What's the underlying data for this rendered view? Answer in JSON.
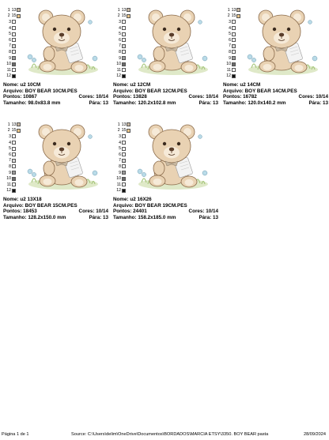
{
  "designs": [
    {
      "nome": "Nome: u2 10CM",
      "arquivo": "Arquivo: BOY BEAR 10CM.PES",
      "pontos": "Pontos: 10867",
      "cores": "Cores: 10/14",
      "tamanho": "Tamanho: 98.0x83.8 mm",
      "para": "Pára: 13"
    },
    {
      "nome": "Nome: u2 12CM",
      "arquivo": "Arquivo: BOY BEAR 12CM.PES",
      "pontos": "Pontos: 13828",
      "cores": "Cores: 10/14",
      "tamanho": "Tamanho: 120.2x102.8 mm",
      "para": "Pára: 13"
    },
    {
      "nome": "Nome: u2 14CM",
      "arquivo": "Arquivo: BOY BEAR 14CM.PES",
      "pontos": "Pontos: 16782",
      "cores": "Cores: 10/14",
      "tamanho": "Tamanho: 120.0x140.2 mm",
      "para": "Pára: 13"
    },
    {
      "nome": "Nome: u2 13X18",
      "arquivo": "Arquivo: BOY BEAR 15CM.PES",
      "pontos": "Pontos: 18453",
      "cores": "Cores: 10/14",
      "tamanho": "Tamanho: 128.2x150.0 mm",
      "para": "Pára: 13"
    },
    {
      "nome": "Nome: u2 16X26",
      "arquivo": "Arquivo: BOY BEAR 19CM.PES",
      "pontos": "Pontos: 24401",
      "cores": "Cores: 10/14",
      "tamanho": "Tamanho: 158.2x185.0 mm",
      "para": "Pára: 13"
    }
  ],
  "swatches": [
    {
      "num": "1",
      "color": "#c9b9a4"
    },
    {
      "num": "2",
      "color": "#e8c58a"
    },
    {
      "num": "3",
      "color": "#ffffff"
    },
    {
      "num": "4",
      "color": "#ffffff"
    },
    {
      "num": "5",
      "color": "#ffffff"
    },
    {
      "num": "6",
      "color": "#ffffff"
    },
    {
      "num": "7",
      "color": "#d8d8d8"
    },
    {
      "num": "8",
      "color": "#ffffff"
    },
    {
      "num": "9",
      "color": "#9a9a9a"
    },
    {
      "num": "10",
      "color": "#6b6b6b"
    },
    {
      "num": "11",
      "color": "#ffffff"
    },
    {
      "num": "12",
      "color": "#111111"
    }
  ],
  "swatch_labels_top": [
    "13",
    "15"
  ],
  "footer": {
    "page": "Página 1 de 1",
    "source": "Source: C:\\Users\\delim\\OneDrive\\Documentos\\BORDADOS\\MARCIA ETSY\\3350. BOY BEAR pasta",
    "date": "28/09/2024"
  },
  "colors": {
    "bear_fur": "#e9d2b3",
    "bear_muzzle": "#f6ead8",
    "bear_outline": "#8a6a4a",
    "bow": "#c7b7a0",
    "shirt": "#f3f3f3",
    "flower": "#b9dbe8",
    "leaf": "#bcd79a"
  }
}
